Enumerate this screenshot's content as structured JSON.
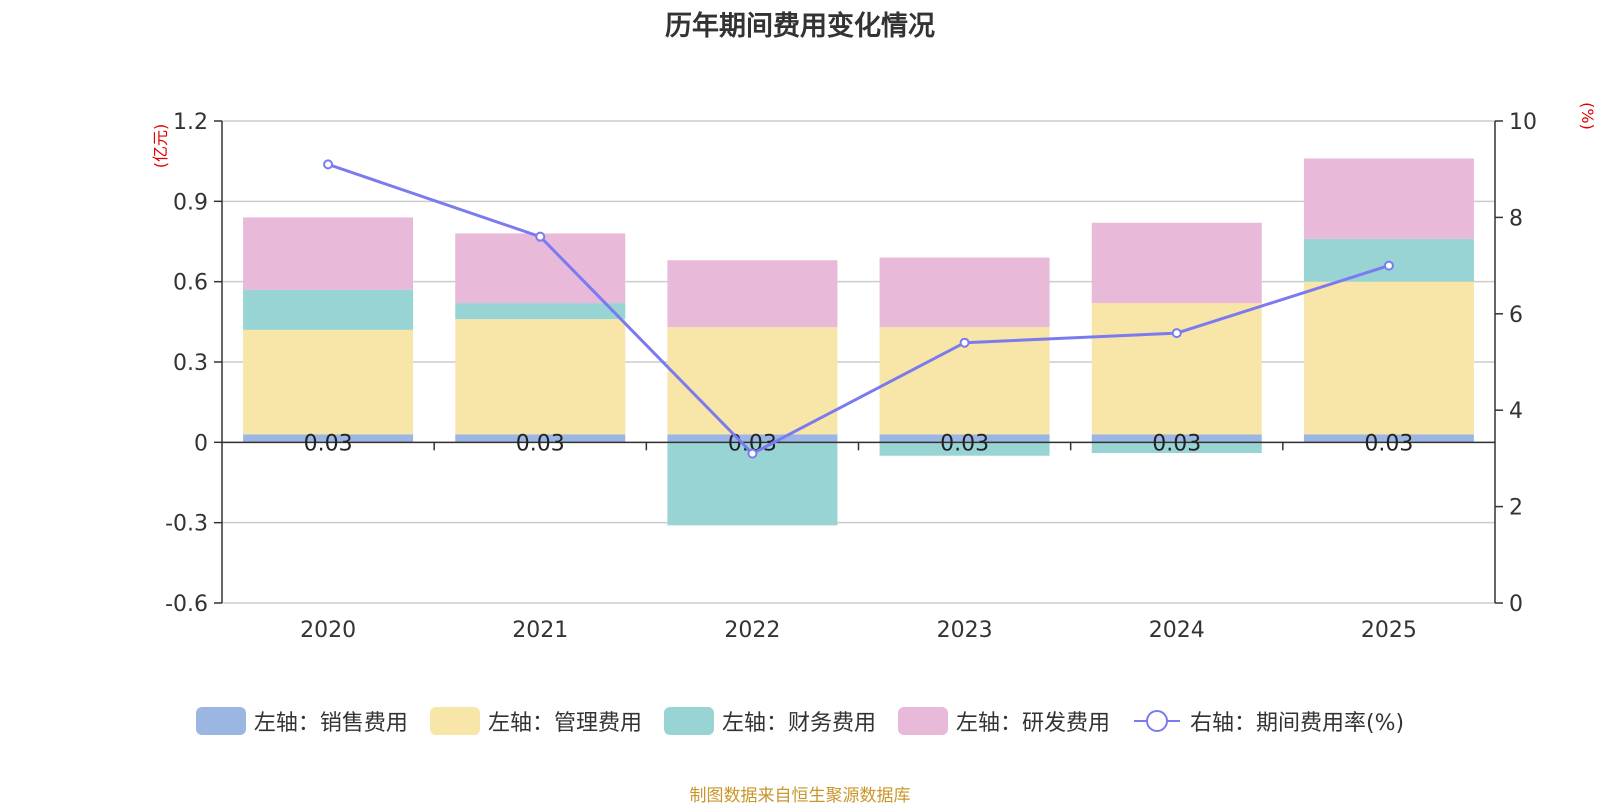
{
  "chart_data": {
    "type": "bar",
    "title": "历年期间费用变化情况",
    "categories": [
      "2020",
      "2021",
      "2022",
      "2023",
      "2024",
      "2025"
    ],
    "left_axis": {
      "unit": "(亿元)",
      "ylim": [
        -0.6,
        1.2
      ],
      "ticks": [
        "-0.6",
        "-0.3",
        "0",
        "0.3",
        "0.6",
        "0.9",
        "1.2"
      ],
      "tick_values": [
        -0.6,
        -0.3,
        0,
        0.3,
        0.6,
        0.9,
        1.2
      ]
    },
    "right_axis": {
      "unit": "(%)",
      "ylim": [
        0,
        10
      ],
      "ticks": [
        "0",
        "2",
        "4",
        "6",
        "8",
        "10"
      ],
      "tick_values": [
        0,
        2,
        4,
        6,
        8,
        10
      ]
    },
    "series": [
      {
        "name": "左轴：销售费用",
        "type": "bar",
        "color": "#9bb6e2",
        "values": [
          0.03,
          0.03,
          0.03,
          0.03,
          0.03,
          0.03
        ],
        "labels": [
          "0.03",
          "0.03",
          "0.03",
          "0.03",
          "0.03",
          "0.03"
        ]
      },
      {
        "name": "左轴：管理费用",
        "type": "bar",
        "color": "#f8e6a8",
        "values": [
          0.39,
          0.43,
          0.4,
          0.4,
          0.49,
          0.57
        ]
      },
      {
        "name": "左轴：财务费用",
        "type": "bar",
        "color": "#98d4d4",
        "values": [
          0.15,
          0.06,
          -0.31,
          -0.05,
          -0.04,
          0.16
        ]
      },
      {
        "name": "左轴：研发费用",
        "type": "bar",
        "color": "#e8b9d9",
        "values": [
          0.27,
          0.26,
          0.25,
          0.26,
          0.3,
          0.3
        ]
      },
      {
        "name": "右轴：期间费用率(%)",
        "type": "line",
        "color": "#7b7bef",
        "values": [
          9.1,
          7.6,
          3.1,
          5.4,
          5.6,
          7.0
        ]
      }
    ]
  },
  "footer": {
    "source": "制图数据来自恒生聚源数据库"
  }
}
